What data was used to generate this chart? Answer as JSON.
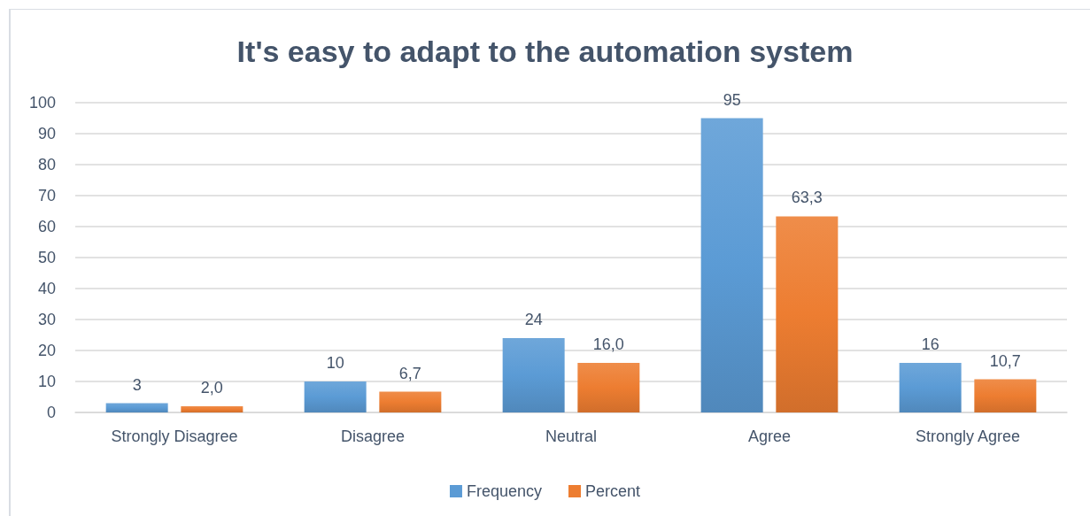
{
  "chart_data": {
    "type": "bar",
    "title": "It's easy to adapt to the automation system",
    "categories": [
      "Strongly Disagree",
      "Disagree",
      "Neutral",
      "Agree",
      "Strongly Agree"
    ],
    "series": [
      {
        "name": "Frequency",
        "color": "#5b9bd5",
        "values": [
          3,
          10,
          24,
          95,
          16
        ],
        "value_labels": [
          "3",
          "10",
          "24",
          "95",
          "16"
        ]
      },
      {
        "name": "Percent",
        "color": "#ed7d31",
        "values": [
          2.0,
          6.7,
          16.0,
          63.3,
          10.7
        ],
        "value_labels": [
          "2,0",
          "6,7",
          "16,0",
          "63,3",
          "10,7"
        ]
      }
    ],
    "ylim": [
      0,
      100
    ],
    "yticks": [
      0,
      10,
      20,
      30,
      40,
      50,
      60,
      70,
      80,
      90,
      100
    ],
    "grid": "y",
    "legend": "bottom"
  }
}
